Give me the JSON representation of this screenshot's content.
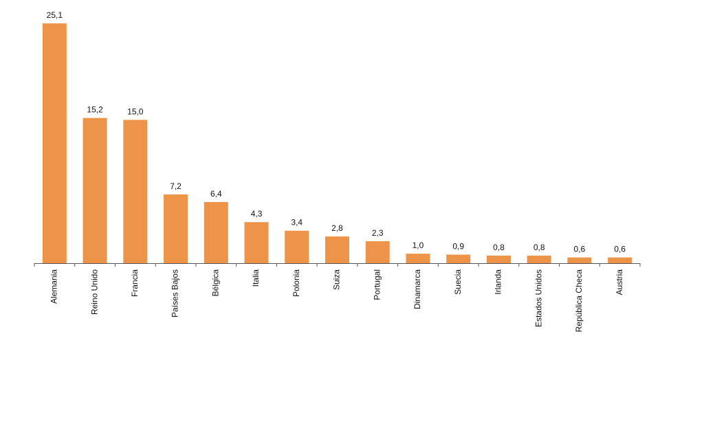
{
  "chart_data": {
    "type": "bar",
    "categories": [
      "Alemania",
      "Reino Unido",
      "Francia",
      "Países Bajos",
      "Bélgica",
      "Italia",
      "Polonia",
      "Suiza",
      "Portugal",
      "Dinamarca",
      "Suecia",
      "Irlanda",
      "Estados Unidos",
      "República Checa",
      "Austria"
    ],
    "values": [
      25.1,
      15.2,
      15.0,
      7.2,
      6.4,
      4.3,
      3.4,
      2.8,
      2.3,
      1.0,
      0.9,
      0.8,
      0.8,
      0.6,
      0.6
    ],
    "value_labels": [
      "25,1",
      "15,2",
      "15,0",
      "7,2",
      "6,4",
      "4,3",
      "3,4",
      "2,8",
      "2,3",
      "1,0",
      "0,9",
      "0,8",
      "0,8",
      "0,6",
      "0,6"
    ],
    "title": "",
    "xlabel": "",
    "ylabel": "",
    "ylim": [
      0,
      25.1
    ],
    "bar_color": "#EE9449",
    "axis_color": "#555555",
    "grid": false,
    "legend": "none",
    "x_tick_label_rotation": "vertical"
  }
}
